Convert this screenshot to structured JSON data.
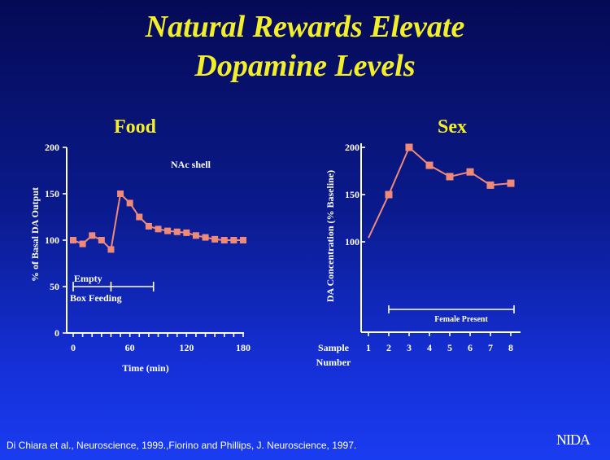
{
  "title_line1": "Natural Rewards Elevate",
  "title_line2": "Dopamine Levels",
  "citation": "Di Chiara et al., Neuroscience, 1999.,Fiorino and Phillips, J. Neuroscience, 1997.",
  "logo": "NIDA",
  "colors": {
    "title": "#f2ee2a",
    "series": "#f08a78",
    "text": "#ffffff"
  },
  "chart_data": [
    {
      "type": "line",
      "title": "Food",
      "annotation": "NAc shell",
      "xlabel": "Time (min)",
      "ylabel": "% of Basal DA Output",
      "xlim": [
        0,
        180
      ],
      "ylim": [
        0,
        200
      ],
      "xticks": [
        "0",
        "60",
        "120",
        "180"
      ],
      "yticks": [
        "0",
        "50",
        "100",
        "150",
        "200"
      ],
      "x": [
        0,
        10,
        20,
        30,
        40,
        50,
        60,
        70,
        80,
        90,
        100,
        110,
        120,
        130,
        140,
        150,
        160,
        170,
        180
      ],
      "series": [
        {
          "values": [
            100,
            96,
            105,
            100,
            90,
            150,
            140,
            125,
            115,
            112,
            110,
            109,
            108,
            105,
            103,
            101,
            100,
            100,
            100
          ]
        }
      ],
      "bars": [
        {
          "label": "Empty",
          "start": 0,
          "end": 40
        },
        {
          "label": "Box Feeding",
          "start": 40,
          "end": 85
        }
      ],
      "grid": false
    },
    {
      "type": "line",
      "title": "Sex",
      "ylabel": "DA Concentration (% Baseline)",
      "xlabel": "Sample Number",
      "categories": [
        "1",
        "2",
        "3",
        "4",
        "5",
        "6",
        "7",
        "8"
      ],
      "yticks": [
        "100",
        "150",
        "200"
      ],
      "ylim": [
        100,
        200
      ],
      "series": [
        {
          "values": [
            104,
            150,
            200,
            181,
            169,
            174,
            160,
            162
          ],
          "markers_from_index": 1
        }
      ],
      "bar": {
        "label": "Female Present",
        "start": "2",
        "end": "8"
      },
      "grid": false
    }
  ]
}
